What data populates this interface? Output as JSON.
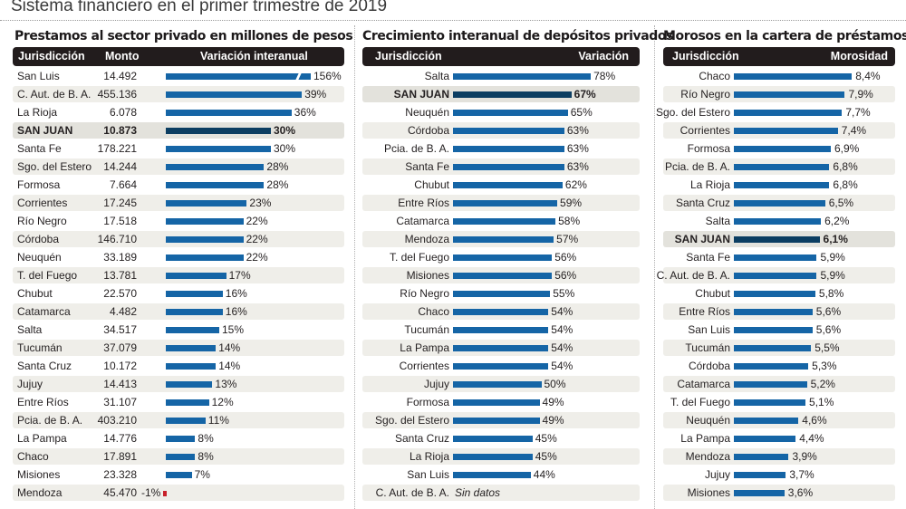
{
  "title": "Sistema financiero en el primer trimestre de 2019",
  "chart_data": [
    {
      "type": "bar",
      "title": "Prestamos al sector privado en millones de pesos",
      "columns": [
        "Jurisdicción",
        "Monto",
        "Variación interanual"
      ],
      "highlight": "SAN JUAN",
      "categories": [
        "San Luis",
        "C. Aut. de B. A.",
        "La Rioja",
        "SAN JUAN",
        "Santa Fe",
        "Sgo. del Estero",
        "Formosa",
        "Corrientes",
        "Río Negro",
        "Córdoba",
        "Neuquén",
        "T. del Fuego",
        "Chubut",
        "Catamarca",
        "Salta",
        "Tucumán",
        "Santa Cruz",
        "Jujuy",
        "Entre Ríos",
        "Pcia. de B. A.",
        "La Pampa",
        "Chaco",
        "Misiones",
        "Mendoza"
      ],
      "monto": [
        "14.492",
        "455.136",
        "6.078",
        "10.873",
        "178.221",
        "14.244",
        "7.664",
        "17.245",
        "17.518",
        "146.710",
        "33.189",
        "13.781",
        "22.570",
        "4.482",
        "34.517",
        "37.079",
        "10.172",
        "14.413",
        "31.107",
        "403.210",
        "14.776",
        "17.891",
        "23.328",
        "45.470"
      ],
      "values": [
        156,
        39,
        36,
        30,
        30,
        28,
        28,
        23,
        22,
        22,
        22,
        17,
        16,
        16,
        15,
        14,
        14,
        13,
        12,
        11,
        8,
        8,
        7,
        -1
      ],
      "labels": [
        "156%",
        "39%",
        "36%",
        "30%",
        "30%",
        "28%",
        "28%",
        "23%",
        "22%",
        "22%",
        "22%",
        "17%",
        "16%",
        "16%",
        "15%",
        "14%",
        "14%",
        "13%",
        "12%",
        "11%",
        "8%",
        "8%",
        "7%",
        "-1%"
      ],
      "truncated": [
        "San Luis"
      ],
      "unit": "%"
    },
    {
      "type": "bar",
      "title": "Crecimiento interanual de depósitos privados",
      "columns": [
        "Jurisdicción",
        "Variación"
      ],
      "highlight": "SAN JUAN",
      "categories": [
        "Salta",
        "SAN JUAN",
        "Neuquén",
        "Córdoba",
        "Pcia. de B. A.",
        "Santa Fe",
        "Chubut",
        "Entre Ríos",
        "Catamarca",
        "Mendoza",
        "T. del Fuego",
        "Misiones",
        "Río Negro",
        "Chaco",
        "Tucumán",
        "La Pampa",
        "Corrientes",
        "Jujuy",
        "Formosa",
        "Sgo. del Estero",
        "Santa Cruz",
        "La Rioja",
        "San Luis",
        "C. Aut. de B. A."
      ],
      "values": [
        78,
        67,
        65,
        63,
        63,
        63,
        62,
        59,
        58,
        57,
        56,
        56,
        55,
        54,
        54,
        54,
        54,
        50,
        49,
        49,
        45,
        45,
        44,
        null
      ],
      "labels": [
        "78%",
        "67%",
        "65%",
        "63%",
        "63%",
        "63%",
        "62%",
        "59%",
        "58%",
        "57%",
        "56%",
        "56%",
        "55%",
        "54%",
        "54%",
        "54%",
        "54%",
        "50%",
        "49%",
        "49%",
        "45%",
        "45%",
        "44%",
        "Sin datos"
      ],
      "unit": "%"
    },
    {
      "type": "bar",
      "title": "Morosos en la cartera de préstamos",
      "columns": [
        "Jurisdicción",
        "Morosidad"
      ],
      "highlight": "SAN JUAN",
      "categories": [
        "Chaco",
        "Río Negro",
        "Sgo. del Estero",
        "Corrientes",
        "Formosa",
        "Pcia. de B. A.",
        "La Rioja",
        "Santa Cruz",
        "Salta",
        "SAN JUAN",
        "Santa Fe",
        "C. Aut. de B. A.",
        "Chubut",
        "Entre Ríos",
        "San Luis",
        "Tucumán",
        "Córdoba",
        "Catamarca",
        "T. del Fuego",
        "Neuquén",
        "La Pampa",
        "Mendoza",
        "Jujuy",
        "Misiones"
      ],
      "values": [
        8.4,
        7.9,
        7.7,
        7.4,
        6.9,
        6.8,
        6.8,
        6.5,
        6.2,
        6.1,
        5.9,
        5.9,
        5.8,
        5.6,
        5.6,
        5.5,
        5.3,
        5.2,
        5.1,
        4.6,
        4.4,
        3.9,
        3.7,
        3.6
      ],
      "labels": [
        "8,4%",
        "7,9%",
        "7,7%",
        "7,4%",
        "6,9%",
        "6,8%",
        "6,8%",
        "6,5%",
        "6,2%",
        "6,1%",
        "5,9%",
        "5,9%",
        "5,8%",
        "5,6%",
        "5,6%",
        "5,5%",
        "5,3%",
        "5,2%",
        "5,1%",
        "4,6%",
        "4,4%",
        "3,9%",
        "3,7%",
        "3,6%"
      ],
      "unit": "%"
    }
  ],
  "colors": {
    "bar": "#1565a6",
    "bar_highlight": "#0c3e62",
    "bar_negative": "#c8202a",
    "header_bg": "#221c1d",
    "row_alt": "#efeee9",
    "row_highlight": "#e3e2dc"
  }
}
